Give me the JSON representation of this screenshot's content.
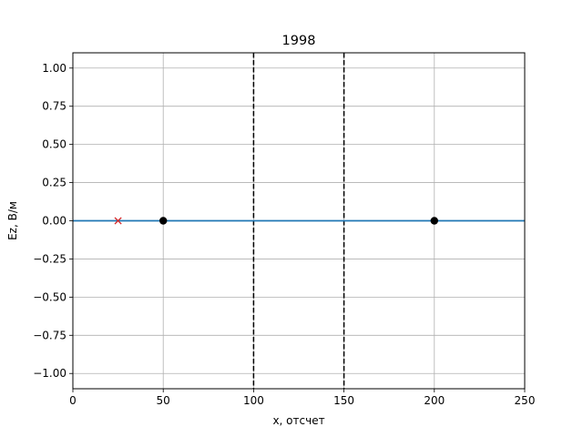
{
  "chart_data": {
    "type": "line",
    "title": "1998",
    "xlabel": "x, отсчет",
    "ylabel": "Ez, В/м",
    "xlim": [
      0,
      250
    ],
    "ylim": [
      -1.1,
      1.1
    ],
    "xticks": [
      0,
      50,
      100,
      150,
      200,
      250
    ],
    "yticks": [
      -1.0,
      -0.75,
      -0.5,
      -0.25,
      0.0,
      0.25,
      0.5,
      0.75,
      1.0
    ],
    "xtick_labels": [
      "0",
      "50",
      "100",
      "150",
      "200",
      "250"
    ],
    "ytick_labels": [
      "−1.00",
      "−0.75",
      "−0.50",
      "−0.25",
      "0.00",
      "0.25",
      "0.50",
      "0.75",
      "1.00"
    ],
    "grid": true,
    "series": [
      {
        "x": [
          0,
          250
        ],
        "y": [
          0,
          0
        ],
        "color": "#1f77b4",
        "style": "solid"
      }
    ],
    "vlines": [
      {
        "x": 100,
        "color": "#000000",
        "style": "dashed"
      },
      {
        "x": 150,
        "color": "#000000",
        "style": "dashed"
      }
    ],
    "markers": [
      {
        "x": 50,
        "y": 0,
        "shape": "circle",
        "color": "#000000"
      },
      {
        "x": 200,
        "y": 0,
        "shape": "circle",
        "color": "#000000"
      },
      {
        "x": 25,
        "y": 0,
        "shape": "x",
        "color": "#d62728"
      }
    ]
  }
}
